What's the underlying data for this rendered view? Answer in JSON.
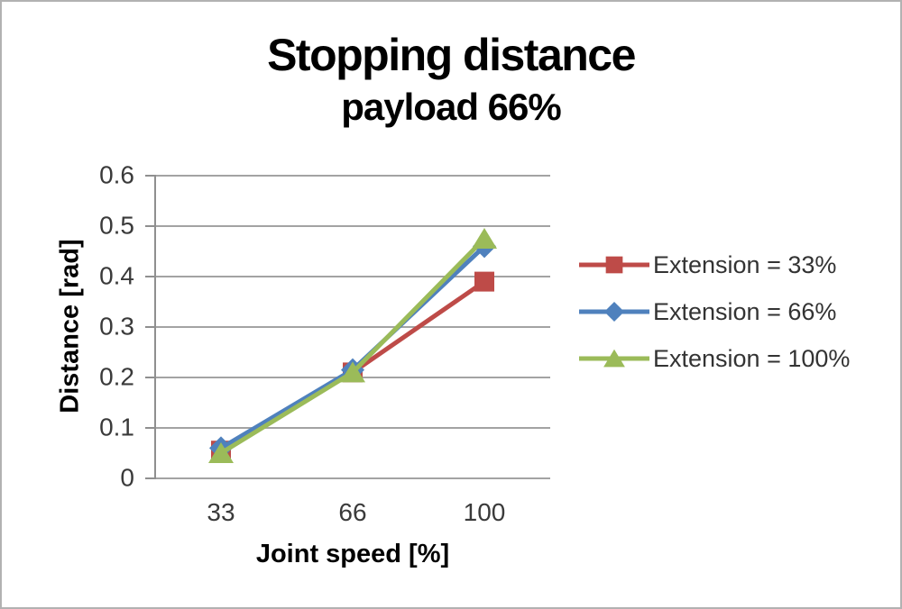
{
  "style": {
    "frame_border_color": "#b2b2b2",
    "background_color": "#ffffff",
    "gridline_color": "#a3a3a3",
    "axis_color": "#8f8f8f",
    "title_color": "#000000",
    "tick_label_color": "#3a3a3a",
    "legend_text_color": "#333333"
  },
  "chart_data": {
    "type": "line",
    "title": "Stopping distance",
    "subtitle": "payload 66%",
    "xlabel": "Joint speed [%]",
    "ylabel": "Distance [rad]",
    "categories": [
      "33",
      "66",
      "100"
    ],
    "series": [
      {
        "name": "Extension = 33%",
        "color": "#be4b48",
        "marker": "square",
        "values": [
          0.055,
          0.21,
          0.39
        ]
      },
      {
        "name": "Extension = 66%",
        "color": "#4f81bd",
        "marker": "diamond",
        "values": [
          0.06,
          0.215,
          0.46
        ]
      },
      {
        "name": "Extension = 100%",
        "color": "#9bbb59",
        "marker": "triangle",
        "values": [
          0.05,
          0.21,
          0.475
        ]
      }
    ],
    "ylim": [
      0,
      0.6
    ],
    "ytick_step": 0.1,
    "ytick_labels": [
      "0.6",
      "0.5",
      "0.4",
      "0.3",
      "0.2",
      "0.1",
      "0"
    ],
    "grid": "horizontal",
    "legend_position": "right"
  }
}
